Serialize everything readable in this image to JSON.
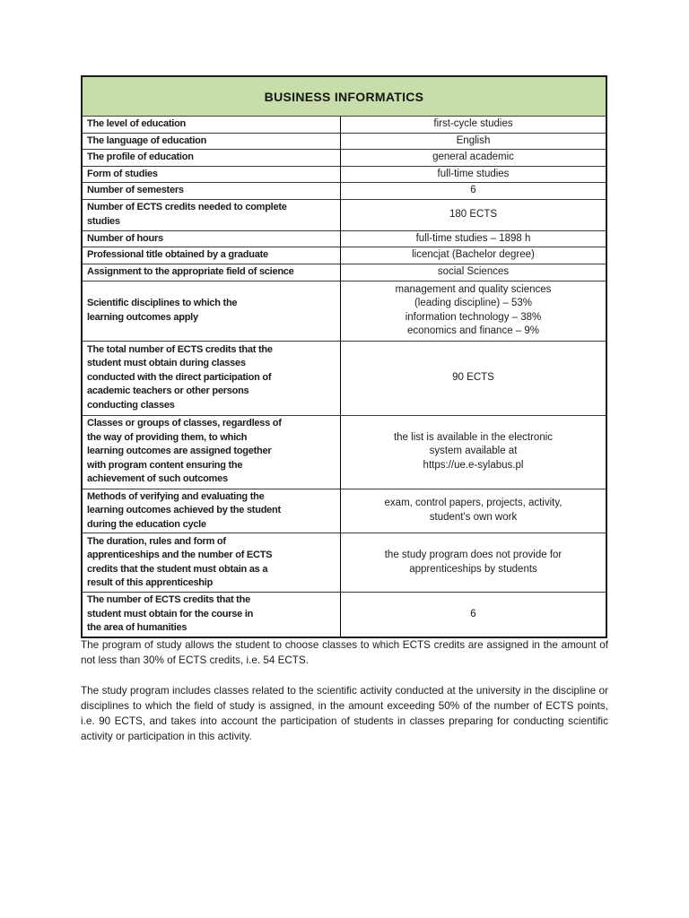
{
  "table": {
    "title": "BUSINESS INFORMATICS",
    "header_bg": "#c9ddab",
    "rows": [
      {
        "label": "The level of education",
        "value": "first-cycle studies"
      },
      {
        "label": "The language of education",
        "value": "English"
      },
      {
        "label": "The profile of education",
        "value": "general academic"
      },
      {
        "label": "Form of studies",
        "value": "full-time studies"
      },
      {
        "label": "Number of semesters",
        "value": "6"
      },
      {
        "label": "Number of ECTS credits needed to complete\nstudies",
        "value": "180 ECTS"
      },
      {
        "label": "Number of hours",
        "value": "full-time studies – 1898 h"
      },
      {
        "label": "Professional title obtained by a graduate",
        "value": "licencjat (Bachelor degree)"
      },
      {
        "label": "Assignment to the appropriate field of science",
        "value": "social Sciences"
      },
      {
        "label": "Scientific disciplines to which the\nlearning outcomes apply",
        "value": "management and quality sciences\n(leading discipline) – 53%\ninformation technology – 38%\neconomics and finance – 9%"
      },
      {
        "label": "The total number of ECTS credits that the\nstudent must obtain during classes\nconducted with the direct participation of\nacademic teachers or other persons\nconducting classes",
        "value": "90 ECTS"
      },
      {
        "label": "Classes or groups of classes, regardless of\nthe way of providing them, to which\nlearning outcomes are assigned together\nwith program content ensuring the\nachievement of such outcomes",
        "value": "the list is available in the electronic\nsystem available at\nhttps://ue.e-sylabus.pl"
      },
      {
        "label": "Methods of verifying and evaluating the\nlearning outcomes achieved by the student\nduring the education cycle",
        "value": "exam, control papers, projects, activity,\nstudent's own work"
      },
      {
        "label": "The duration, rules and form of\napprenticeships and the number of ECTS\ncredits that the student must obtain as a\nresult of this apprenticeship",
        "value": "the study program does not provide for\napprenticeships by students"
      },
      {
        "label": "The number of ECTS credits that the\nstudent must obtain for the course in\nthe area of humanities",
        "value": "6"
      }
    ]
  },
  "paragraphs": [
    "The program of study allows the student to choose classes to which ECTS credits are assigned in the amount of not less than 30% of ECTS credits, i.e. 54 ECTS.",
    "The study program includes classes related to the scientific activity conducted at the university in the discipline or disciplines to which the field of study is assigned, in the amount exceeding 50% of the number of ECTS points, i.e. 90 ECTS, and takes into account the participation of students in classes preparing for conducting scientific activity or participation in this activity."
  ]
}
